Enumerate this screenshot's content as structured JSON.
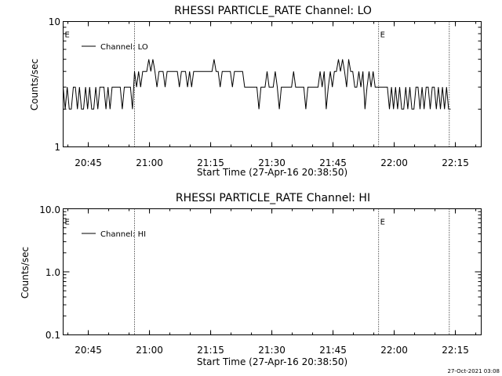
{
  "footer": {
    "timestamp": "27-Oct-2021 03:08"
  },
  "chart_data": [
    {
      "type": "line",
      "title": "RHESSI PARTICLE_RATE Channel: LO",
      "xlabel": "Start Time (27-Apr-16 20:38:50)",
      "ylabel": "Counts/sec",
      "yscale": "log",
      "ylim": [
        1,
        10
      ],
      "xlim": [
        "20:38:50",
        "22:21:20"
      ],
      "x_ticks": [
        "20:45",
        "21:00",
        "21:15",
        "21:30",
        "21:45",
        "22:00",
        "22:15"
      ],
      "y_ticks": [
        "1",
        "10"
      ],
      "legend": {
        "labels": [
          "Channel: LO"
        ],
        "position": "top-left"
      },
      "event_markers": [
        {
          "x": "20:38:50",
          "label": "E"
        },
        {
          "x": "20:56:20",
          "label": ""
        },
        {
          "x": "21:56:10",
          "label": "E"
        },
        {
          "x": "22:13:30",
          "label": ""
        }
      ],
      "series": [
        {
          "name": "Channel: LO",
          "x": [
            "20:38:50",
            "20:39:20",
            "20:39:50",
            "20:40:20",
            "20:40:50",
            "20:41:20",
            "20:41:50",
            "20:42:20",
            "20:42:50",
            "20:43:20",
            "20:43:50",
            "20:44:20",
            "20:44:50",
            "20:45:20",
            "20:45:50",
            "20:46:20",
            "20:46:50",
            "20:47:20",
            "20:47:50",
            "20:48:20",
            "20:48:50",
            "20:49:20",
            "20:49:50",
            "20:50:20",
            "20:50:50",
            "20:51:20",
            "20:51:50",
            "20:52:20",
            "20:52:50",
            "20:53:20",
            "20:53:50",
            "20:54:20",
            "20:54:50",
            "20:55:20",
            "20:55:50",
            "20:56:20",
            "20:56:50",
            "20:57:20",
            "20:57:50",
            "20:58:20",
            "20:58:50",
            "20:59:20",
            "20:59:50",
            "21:00:20",
            "21:00:50",
            "21:01:20",
            "21:01:50",
            "21:02:20",
            "21:02:50",
            "21:03:20",
            "21:03:50",
            "21:04:20",
            "21:04:50",
            "21:05:20",
            "21:05:50",
            "21:06:20",
            "21:06:50",
            "21:07:20",
            "21:07:50",
            "21:08:20",
            "21:08:50",
            "21:09:20",
            "21:09:50",
            "21:10:20",
            "21:10:50",
            "21:11:20",
            "21:11:50",
            "21:12:20",
            "21:12:50",
            "21:13:20",
            "21:13:50",
            "21:14:20",
            "21:14:50",
            "21:15:20",
            "21:15:50",
            "21:16:20",
            "21:16:50",
            "21:17:20",
            "21:17:50",
            "21:18:20",
            "21:18:50",
            "21:19:20",
            "21:19:50",
            "21:20:20",
            "21:20:50",
            "21:21:20",
            "21:21:50",
            "21:22:20",
            "21:22:50",
            "21:23:20",
            "21:23:50",
            "21:24:20",
            "21:24:50",
            "21:25:20",
            "21:25:50",
            "21:26:20",
            "21:26:50",
            "21:27:20",
            "21:27:50",
            "21:28:20",
            "21:28:50",
            "21:29:20",
            "21:29:50",
            "21:30:20",
            "21:30:50",
            "21:31:20",
            "21:31:50",
            "21:32:20",
            "21:32:50",
            "21:33:20",
            "21:33:50",
            "21:34:20",
            "21:34:50",
            "21:35:20",
            "21:35:50",
            "21:36:20",
            "21:36:50",
            "21:37:20",
            "21:37:50",
            "21:38:20",
            "21:38:50",
            "21:39:20",
            "21:39:50",
            "21:40:20",
            "21:40:50",
            "21:41:20",
            "21:41:50",
            "21:42:20",
            "21:42:50",
            "21:43:20",
            "21:43:50",
            "21:44:20",
            "21:44:50",
            "21:45:20",
            "21:45:50",
            "21:46:20",
            "21:46:50",
            "21:47:20",
            "21:47:50",
            "21:48:20",
            "21:48:50",
            "21:49:20",
            "21:49:50",
            "21:50:20",
            "21:50:50",
            "21:51:20",
            "21:51:50",
            "21:52:20",
            "21:52:50",
            "21:53:20",
            "21:53:50",
            "21:54:20",
            "21:54:50",
            "21:55:20",
            "21:55:50",
            "21:56:20",
            "21:56:50",
            "21:57:20",
            "21:57:50",
            "21:58:20",
            "21:58:50",
            "21:59:20",
            "21:59:50",
            "22:00:20",
            "22:00:50",
            "22:01:20",
            "22:01:50",
            "22:02:20",
            "22:02:50",
            "22:03:20",
            "22:03:50",
            "22:04:20",
            "22:04:50",
            "22:05:20",
            "22:05:50",
            "22:06:20",
            "22:06:50",
            "22:07:20",
            "22:07:50",
            "22:08:20",
            "22:08:50",
            "22:09:20",
            "22:09:50",
            "22:10:20",
            "22:10:50",
            "22:11:20",
            "22:11:50",
            "22:12:20",
            "22:12:50",
            "22:13:20",
            "22:13:50"
          ],
          "values": [
            3,
            2,
            3,
            2,
            2,
            3,
            3,
            2,
            3,
            2,
            2,
            3,
            2,
            3,
            2,
            2,
            3,
            2,
            3,
            3,
            3,
            2,
            3,
            2,
            3,
            3,
            3,
            3,
            3,
            2,
            3,
            3,
            3,
            3,
            2,
            4,
            3,
            4,
            3,
            4,
            4,
            4,
            5,
            4,
            5,
            4,
            3,
            4,
            4,
            4,
            3,
            4,
            4,
            4,
            4,
            4,
            4,
            3,
            4,
            4,
            4,
            3,
            4,
            3,
            4,
            4,
            4,
            4,
            4,
            4,
            4,
            4,
            4,
            4,
            5,
            4,
            4,
            3,
            4,
            4,
            4,
            4,
            4,
            3,
            4,
            4,
            4,
            4,
            4,
            3,
            3,
            3,
            3,
            3,
            3,
            3,
            2,
            3,
            3,
            3,
            4,
            3,
            3,
            3,
            4,
            3,
            2,
            3,
            3,
            3,
            3,
            3,
            3,
            4,
            3,
            3,
            3,
            3,
            3,
            2,
            3,
            3,
            3,
            3,
            3,
            3,
            4,
            3,
            4,
            2,
            3,
            4,
            3,
            4,
            4,
            5,
            4,
            5,
            4,
            3,
            5,
            4,
            4,
            3,
            3,
            4,
            3,
            4,
            2,
            3,
            4,
            3,
            4,
            3,
            3,
            3,
            3,
            3,
            3,
            3,
            2,
            3,
            2,
            3,
            2,
            3,
            2,
            2,
            3,
            2,
            3,
            2,
            2,
            3,
            3,
            2,
            3,
            2,
            3,
            3,
            2,
            3,
            3,
            2,
            3,
            2,
            3,
            2,
            3,
            2,
            2
          ]
        }
      ]
    },
    {
      "type": "line",
      "title": "RHESSI PARTICLE_RATE Channel: HI",
      "xlabel": "Start Time (27-Apr-16 20:38:50)",
      "ylabel": "Counts/sec",
      "yscale": "log",
      "ylim": [
        0.1,
        10
      ],
      "xlim": [
        "20:38:50",
        "22:21:20"
      ],
      "x_ticks": [
        "20:45",
        "21:00",
        "21:15",
        "21:30",
        "21:45",
        "22:00",
        "22:15"
      ],
      "y_ticks": [
        "0.1",
        "1.0",
        "10.0"
      ],
      "legend": {
        "labels": [
          "Channel: HI"
        ],
        "position": "top-left"
      },
      "event_markers": [
        {
          "x": "20:38:50",
          "label": "E"
        },
        {
          "x": "20:56:20",
          "label": ""
        },
        {
          "x": "21:56:10",
          "label": "E"
        },
        {
          "x": "22:13:30",
          "label": ""
        }
      ],
      "series": [
        {
          "name": "Channel: HI",
          "x": [],
          "values": []
        }
      ]
    }
  ]
}
